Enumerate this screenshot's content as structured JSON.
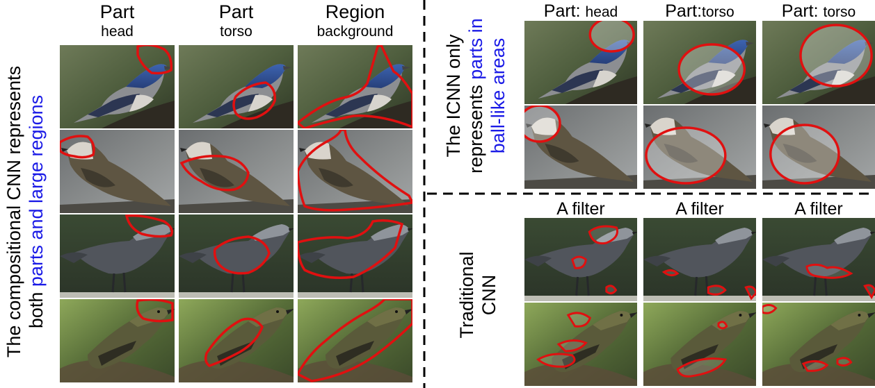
{
  "left_panel": {
    "columns": [
      {
        "line1": "Part",
        "line2": "head"
      },
      {
        "line1": "Part",
        "line2": "torso"
      },
      {
        "line1": "Region",
        "line2": "background"
      }
    ],
    "side_label": {
      "line1": "The compositional CNN represents",
      "line2_plain": "both ",
      "line2_highlight": "parts and large regions"
    }
  },
  "top_right_panel": {
    "columns": [
      {
        "prefix": "Part: ",
        "part": "head"
      },
      {
        "prefix": "Part:",
        "part": "torso"
      },
      {
        "prefix": "Part: ",
        "part": "torso"
      }
    ],
    "side_label": {
      "line1": "The ICNN only",
      "line2_plain": "represents ",
      "line2_highlight": "parts in",
      "line3_highlight": "ball-like areas"
    }
  },
  "bottom_right_panel": {
    "columns": [
      "A filter",
      "A filter",
      "A filter"
    ],
    "side_label": {
      "line1": "Traditional",
      "line2": "CNN"
    }
  },
  "colors": {
    "highlight_text": "#1a1ae6",
    "contour": "#e01010",
    "divider": "#000000"
  }
}
